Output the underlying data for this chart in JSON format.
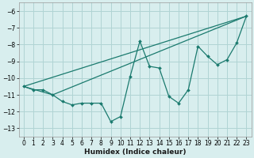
{
  "bg_color": "#d8eeee",
  "grid_color": "#b0d4d4",
  "line_color": "#1a7a6e",
  "xlabel": "Humidex (Indice chaleur)",
  "xlim": [
    -0.5,
    23.5
  ],
  "ylim": [
    -13.5,
    -5.5
  ],
  "yticks": [
    -13,
    -12,
    -11,
    -10,
    -9,
    -8,
    -7,
    -6
  ],
  "xticks": [
    0,
    1,
    2,
    3,
    4,
    5,
    6,
    7,
    8,
    9,
    10,
    11,
    12,
    13,
    14,
    15,
    16,
    17,
    18,
    19,
    20,
    21,
    22,
    23
  ],
  "series1_x": [
    0,
    1,
    2,
    3,
    4,
    5,
    6,
    7,
    8,
    9,
    10,
    11,
    12,
    13,
    14,
    15,
    16,
    17,
    18,
    19,
    20,
    21,
    22,
    23
  ],
  "series1_y": [
    -10.5,
    -10.7,
    -10.7,
    -11.0,
    -11.4,
    -11.6,
    -11.5,
    -11.5,
    -11.5,
    -12.6,
    -12.3,
    -9.9,
    -7.8,
    -9.3,
    -9.4,
    -11.1,
    -11.5,
    -10.7,
    -8.1,
    -8.7,
    -9.2,
    -8.9,
    -7.9,
    -6.3
  ],
  "trend1_x": [
    0,
    23
  ],
  "trend1_y": [
    -10.5,
    -6.3
  ],
  "trend2_x": [
    0,
    3,
    23
  ],
  "trend2_y": [
    -10.5,
    -11.0,
    -6.3
  ],
  "tick_fontsize": 5.5,
  "xlabel_fontsize": 6.5
}
